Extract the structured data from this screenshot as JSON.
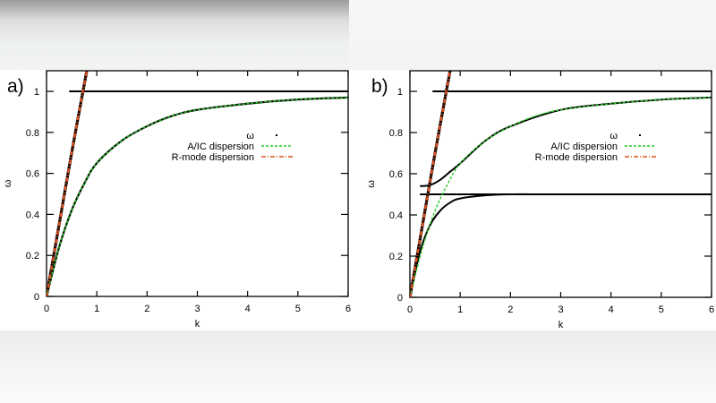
{
  "chart_data": [
    {
      "panel": "a)",
      "type": "line",
      "title": "",
      "xlabel": "k",
      "ylabel": "ω",
      "xlim": [
        0,
        6
      ],
      "ylim": [
        0,
        1.1
      ],
      "xticks": [
        "0",
        "1",
        "2",
        "3",
        "4",
        "5",
        "6"
      ],
      "yticks": [
        "0",
        "0.2",
        "0.4",
        "0.6",
        "0.8",
        "1"
      ],
      "grid": false,
      "legend_position": "upper right (inside)",
      "legend": [
        "ω",
        "A/IC dispersion",
        "R-mode dispersion"
      ],
      "series": [
        {
          "name": "ω (numerical, upper flat)",
          "style": "black solid",
          "x": [
            0.45,
            6
          ],
          "y": [
            1.0,
            1.0
          ]
        },
        {
          "name": "ω (numerical, rising)",
          "style": "black solid",
          "x": [
            0,
            0.2,
            0.5,
            0.72
          ],
          "y": [
            0,
            0.28,
            0.7,
            1.0
          ]
        },
        {
          "name": "A/IC dispersion",
          "style": "green dashed",
          "x": [
            0,
            0.25,
            0.5,
            0.75,
            1,
            1.5,
            2,
            2.5,
            3,
            4,
            5,
            6
          ],
          "y": [
            0,
            0.24,
            0.42,
            0.55,
            0.65,
            0.76,
            0.83,
            0.88,
            0.91,
            0.94,
            0.96,
            0.97
          ]
        },
        {
          "name": "R-mode dispersion",
          "style": "red dash-dot",
          "x": [
            0,
            0.2,
            0.5,
            0.8
          ],
          "y": [
            0,
            0.28,
            0.7,
            1.1
          ]
        }
      ]
    },
    {
      "panel": "b)",
      "type": "line",
      "title": "",
      "xlabel": "k",
      "ylabel": "ω",
      "xlim": [
        0,
        6
      ],
      "ylim": [
        0,
        1.1
      ],
      "xticks": [
        "0",
        "1",
        "2",
        "3",
        "4",
        "5",
        "6"
      ],
      "yticks": [
        "0",
        "0.2",
        "0.4",
        "0.6",
        "0.8",
        "1"
      ],
      "grid": false,
      "legend_position": "upper right (inside)",
      "legend": [
        "ω",
        "A/IC dispersion",
        "R-mode dispersion"
      ],
      "series": [
        {
          "name": "ω (upper flat)",
          "style": "black solid",
          "x": [
            0.45,
            6
          ],
          "y": [
            1.0,
            1.0
          ]
        },
        {
          "name": "ω (mid flat)",
          "style": "black solid then dotted beyond k≈5",
          "x": [
            0.2,
            6
          ],
          "y": [
            0.5,
            0.5
          ]
        },
        {
          "name": "ω (rising)",
          "style": "black solid",
          "x": [
            0,
            0.2,
            0.5,
            0.75
          ],
          "y": [
            0,
            0.28,
            0.7,
            1.05
          ]
        },
        {
          "name": "ω (upper branch)",
          "style": "black solid",
          "x": [
            0.2,
            0.4,
            0.6,
            0.8,
            1,
            1.5,
            2,
            3,
            4,
            5,
            6
          ],
          "y": [
            0.54,
            0.545,
            0.57,
            0.61,
            0.65,
            0.76,
            0.83,
            0.91,
            0.94,
            0.96,
            0.97
          ]
        },
        {
          "name": "ω (lower branch)",
          "style": "black solid",
          "x": [
            0,
            0.2,
            0.4,
            0.6,
            0.8,
            1,
            1.5,
            2,
            3,
            6
          ],
          "y": [
            0,
            0.22,
            0.35,
            0.42,
            0.46,
            0.48,
            0.495,
            0.5,
            0.5,
            0.5
          ]
        },
        {
          "name": "A/IC dispersion",
          "style": "green dashed",
          "x": [
            0,
            0.25,
            0.5,
            0.75,
            1,
            1.5,
            2,
            2.5,
            3,
            4,
            5,
            6
          ],
          "y": [
            0,
            0.24,
            0.42,
            0.55,
            0.65,
            0.76,
            0.83,
            0.88,
            0.91,
            0.94,
            0.96,
            0.97
          ]
        },
        {
          "name": "R-mode dispersion",
          "style": "red dash-dot",
          "x": [
            0,
            0.2,
            0.5,
            0.8
          ],
          "y": [
            0,
            0.28,
            0.7,
            1.1
          ]
        }
      ]
    }
  ],
  "panels": {
    "a": {
      "label": "a)",
      "xlabel": "k",
      "ylabel": "ω"
    },
    "b": {
      "label": "b)",
      "xlabel": "k",
      "ylabel": "ω"
    }
  },
  "legend": {
    "omega": "ω",
    "aic": "A/IC dispersion",
    "rmode": "R-mode dispersion"
  },
  "ticks": {
    "x": [
      "0",
      "1",
      "2",
      "3",
      "4",
      "5",
      "6"
    ],
    "y": [
      "0",
      "0.2",
      "0.4",
      "0.6",
      "0.8",
      "1"
    ]
  },
  "colors": {
    "omega": "#000000",
    "aic": "#22cc22",
    "rmode": "#e0501e"
  }
}
